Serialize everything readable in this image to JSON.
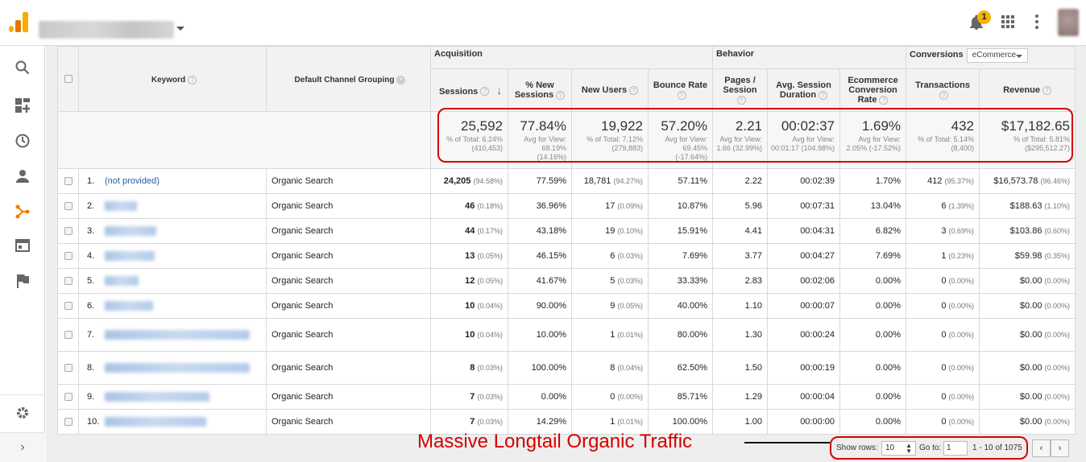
{
  "header": {
    "notification_count": "1"
  },
  "sidebar": {
    "items": [
      "search-icon",
      "customization-icon",
      "realtime-clock-icon",
      "audience-person-icon",
      "acquisition-icon",
      "behavior-icon",
      "conversions-flag-icon"
    ],
    "active_index": 4,
    "active_color": "#f57c00"
  },
  "table": {
    "groups": {
      "acquisition": "Acquisition",
      "behavior": "Behavior",
      "conversions": "Conversions",
      "conversion_select": "eCommerce"
    },
    "columns": {
      "keyword": "Keyword",
      "channel": "Default Channel Grouping",
      "sessions": "Sessions",
      "pct_new_sessions": "% New Sessions",
      "new_users": "New Users",
      "bounce_rate": "Bounce Rate",
      "pages_session": "Pages / Session",
      "avg_session_duration": "Avg. Session Duration",
      "ecom_conv_rate": "Ecommerce Conversion Rate",
      "transactions": "Transactions",
      "revenue": "Revenue"
    },
    "summary": {
      "sessions": {
        "value": "25,592",
        "sub": "% of Total: 6.24% (410,453)"
      },
      "pct_new_sessions": {
        "value": "77.84%",
        "sub": "Avg for View: 68.19% (14.16%)"
      },
      "new_users": {
        "value": "19,922",
        "sub": "% of Total: 7.12% (279,883)"
      },
      "bounce_rate": {
        "value": "57.20%",
        "sub": "Avg for View: 69.45% (-17.64%)"
      },
      "pages_session": {
        "value": "2.21",
        "sub": "Avg for View: 1.66 (32.99%)"
      },
      "avg_session_duration": {
        "value": "00:02:37",
        "sub": "Avg for View: 00:01:17 (104.98%)"
      },
      "ecom_conv_rate": {
        "value": "1.69%",
        "sub": "Avg for View: 2.05% (-17.52%)"
      },
      "transactions": {
        "value": "432",
        "sub": "% of Total: 5.14% (8,400)"
      },
      "revenue": {
        "value": "$17,182.65",
        "sub": "% of Total: 5.81% ($295,512.27)"
      }
    },
    "rows": [
      {
        "idx": "1.",
        "keyword": "(not provided)",
        "channel": "Organic Search",
        "sessions": "24,205",
        "sessions_pct": "(94.58%)",
        "pct_new": "77.59%",
        "new_users": "18,781",
        "new_users_pct": "(94.27%)",
        "bounce": "57.11%",
        "pages": "2.22",
        "duration": "00:02:39",
        "conv": "1.70%",
        "trans": "412",
        "trans_pct": "(95.37%)",
        "revenue": "$16,573.78",
        "revenue_pct": "(96.46%)"
      },
      {
        "idx": "2.",
        "keyword": "",
        "channel": "Organic Search",
        "sessions": "46",
        "sessions_pct": "(0.18%)",
        "pct_new": "36.96%",
        "new_users": "17",
        "new_users_pct": "(0.09%)",
        "bounce": "10.87%",
        "pages": "5.96",
        "duration": "00:07:31",
        "conv": "13.04%",
        "trans": "6",
        "trans_pct": "(1.39%)",
        "revenue": "$188.63",
        "revenue_pct": "(1.10%)"
      },
      {
        "idx": "3.",
        "keyword": "",
        "channel": "Organic Search",
        "sessions": "44",
        "sessions_pct": "(0.17%)",
        "pct_new": "43.18%",
        "new_users": "19",
        "new_users_pct": "(0.10%)",
        "bounce": "15.91%",
        "pages": "4.41",
        "duration": "00:04:31",
        "conv": "6.82%",
        "trans": "3",
        "trans_pct": "(0.69%)",
        "revenue": "$103.86",
        "revenue_pct": "(0.60%)"
      },
      {
        "idx": "4.",
        "keyword": "",
        "channel": "Organic Search",
        "sessions": "13",
        "sessions_pct": "(0.05%)",
        "pct_new": "46.15%",
        "new_users": "6",
        "new_users_pct": "(0.03%)",
        "bounce": "7.69%",
        "pages": "3.77",
        "duration": "00:04:27",
        "conv": "7.69%",
        "trans": "1",
        "trans_pct": "(0.23%)",
        "revenue": "$59.98",
        "revenue_pct": "(0.35%)"
      },
      {
        "idx": "5.",
        "keyword": "",
        "channel": "Organic Search",
        "sessions": "12",
        "sessions_pct": "(0.05%)",
        "pct_new": "41.67%",
        "new_users": "5",
        "new_users_pct": "(0.03%)",
        "bounce": "33.33%",
        "pages": "2.83",
        "duration": "00:02:06",
        "conv": "0.00%",
        "trans": "0",
        "trans_pct": "(0.00%)",
        "revenue": "$0.00",
        "revenue_pct": "(0.00%)"
      },
      {
        "idx": "6.",
        "keyword": "",
        "channel": "Organic Search",
        "sessions": "10",
        "sessions_pct": "(0.04%)",
        "pct_new": "90.00%",
        "new_users": "9",
        "new_users_pct": "(0.05%)",
        "bounce": "40.00%",
        "pages": "1.10",
        "duration": "00:00:07",
        "conv": "0.00%",
        "trans": "0",
        "trans_pct": "(0.00%)",
        "revenue": "$0.00",
        "revenue_pct": "(0.00%)"
      },
      {
        "idx": "7.",
        "keyword": "",
        "channel": "Organic Search",
        "sessions": "10",
        "sessions_pct": "(0.04%)",
        "pct_new": "10.00%",
        "new_users": "1",
        "new_users_pct": "(0.01%)",
        "bounce": "80.00%",
        "pages": "1.30",
        "duration": "00:00:24",
        "conv": "0.00%",
        "trans": "0",
        "trans_pct": "(0.00%)",
        "revenue": "$0.00",
        "revenue_pct": "(0.00%)"
      },
      {
        "idx": "8.",
        "keyword": "",
        "channel": "Organic Search",
        "sessions": "8",
        "sessions_pct": "(0.03%)",
        "pct_new": "100.00%",
        "new_users": "8",
        "new_users_pct": "(0.04%)",
        "bounce": "62.50%",
        "pages": "1.50",
        "duration": "00:00:19",
        "conv": "0.00%",
        "trans": "0",
        "trans_pct": "(0.00%)",
        "revenue": "$0.00",
        "revenue_pct": "(0.00%)"
      },
      {
        "idx": "9.",
        "keyword": "",
        "channel": "Organic Search",
        "sessions": "7",
        "sessions_pct": "(0.03%)",
        "pct_new": "0.00%",
        "new_users": "0",
        "new_users_pct": "(0.00%)",
        "bounce": "85.71%",
        "pages": "1.29",
        "duration": "00:00:04",
        "conv": "0.00%",
        "trans": "0",
        "trans_pct": "(0.00%)",
        "revenue": "$0.00",
        "revenue_pct": "(0.00%)"
      },
      {
        "idx": "10.",
        "keyword": "",
        "channel": "Organic Search",
        "sessions": "7",
        "sessions_pct": "(0.03%)",
        "pct_new": "14.29%",
        "new_users": "1",
        "new_users_pct": "(0.01%)",
        "bounce": "100.00%",
        "pages": "1.00",
        "duration": "00:00:00",
        "conv": "0.00%",
        "trans": "0",
        "trans_pct": "(0.00%)",
        "revenue": "$0.00",
        "revenue_pct": "(0.00%)"
      }
    ]
  },
  "footer": {
    "show_rows_label": "Show rows:",
    "show_rows_value": "10",
    "goto_label": "Go to:",
    "goto_value": "1",
    "range": "1 - 10 of 1075",
    "prev": "‹",
    "next": "›"
  },
  "annotation": {
    "text": "Massive Longtail Organic Traffic",
    "color": "#d40000"
  }
}
